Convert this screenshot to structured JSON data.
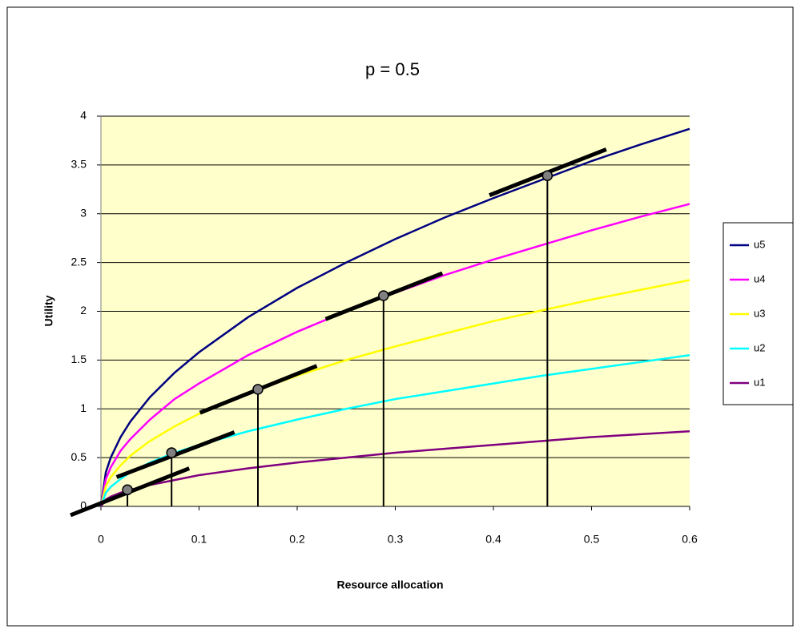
{
  "chart_data": {
    "type": "line",
    "title": "p = 0.5",
    "x_label": "Resource allocation",
    "y_label": "Utility",
    "x": [
      0,
      0.005,
      0.01,
      0.02,
      0.03,
      0.05,
      0.075,
      0.1,
      0.15,
      0.2,
      0.25,
      0.3,
      0.35,
      0.4,
      0.45,
      0.5,
      0.55,
      0.6
    ],
    "series": [
      {
        "name": "u5",
        "color": "#000080",
        "values": [
          0,
          0.35,
          0.5,
          0.71,
          0.87,
          1.12,
          1.37,
          1.58,
          1.94,
          2.24,
          2.5,
          2.74,
          2.96,
          3.16,
          3.35,
          3.54,
          3.71,
          3.87
        ]
      },
      {
        "name": "u4",
        "color": "#ff00ff",
        "values": [
          0,
          0.28,
          0.4,
          0.57,
          0.69,
          0.89,
          1.1,
          1.26,
          1.55,
          1.79,
          2,
          2.19,
          2.37,
          2.53,
          2.68,
          2.83,
          2.97,
          3.1
        ]
      },
      {
        "name": "u3",
        "color": "#ffff00",
        "values": [
          0,
          0.21,
          0.3,
          0.42,
          0.52,
          0.67,
          0.82,
          0.95,
          1.16,
          1.34,
          1.5,
          1.64,
          1.77,
          1.9,
          2.01,
          2.12,
          2.22,
          2.32
        ]
      },
      {
        "name": "u2",
        "color": "#00ffff",
        "values": [
          0,
          0.14,
          0.2,
          0.28,
          0.35,
          0.45,
          0.55,
          0.63,
          0.77,
          0.89,
          1,
          1.1,
          1.18,
          1.26,
          1.34,
          1.41,
          1.48,
          1.55
        ]
      },
      {
        "name": "u1",
        "color": "#800080",
        "values": [
          0,
          0.07,
          0.1,
          0.14,
          0.17,
          0.22,
          0.27,
          0.32,
          0.39,
          0.45,
          0.5,
          0.55,
          0.59,
          0.63,
          0.67,
          0.71,
          0.74,
          0.77
        ]
      }
    ],
    "points": {
      "x": [
        0.027,
        0.072,
        0.16,
        0.288,
        0.455
      ],
      "y": [
        0.17,
        0.55,
        1.2,
        2.16,
        3.39
      ]
    },
    "tangents": [
      {
        "x": [
          -0.031,
          0.09
        ],
        "y": [
          -0.09,
          0.39
        ]
      },
      {
        "x": [
          0.016,
          0.136
        ],
        "y": [
          0.3,
          0.76
        ]
      },
      {
        "x": [
          0.101,
          0.22
        ],
        "y": [
          0.96,
          1.44
        ]
      },
      {
        "x": [
          0.229,
          0.348
        ],
        "y": [
          1.92,
          2.39
        ]
      },
      {
        "x": [
          0.396,
          0.515
        ],
        "y": [
          3.19,
          3.66
        ]
      }
    ],
    "xlim": [
      0,
      0.6
    ],
    "xticks": [
      0,
      0.1,
      0.2,
      0.3,
      0.4,
      0.5,
      0.6
    ],
    "ylim": [
      0,
      4
    ],
    "yticks": [
      0,
      0.5,
      1,
      1.5,
      2,
      2.5,
      3,
      3.5,
      4
    ],
    "grid": true,
    "plot_background": "#ffffcc",
    "legend": "right"
  }
}
